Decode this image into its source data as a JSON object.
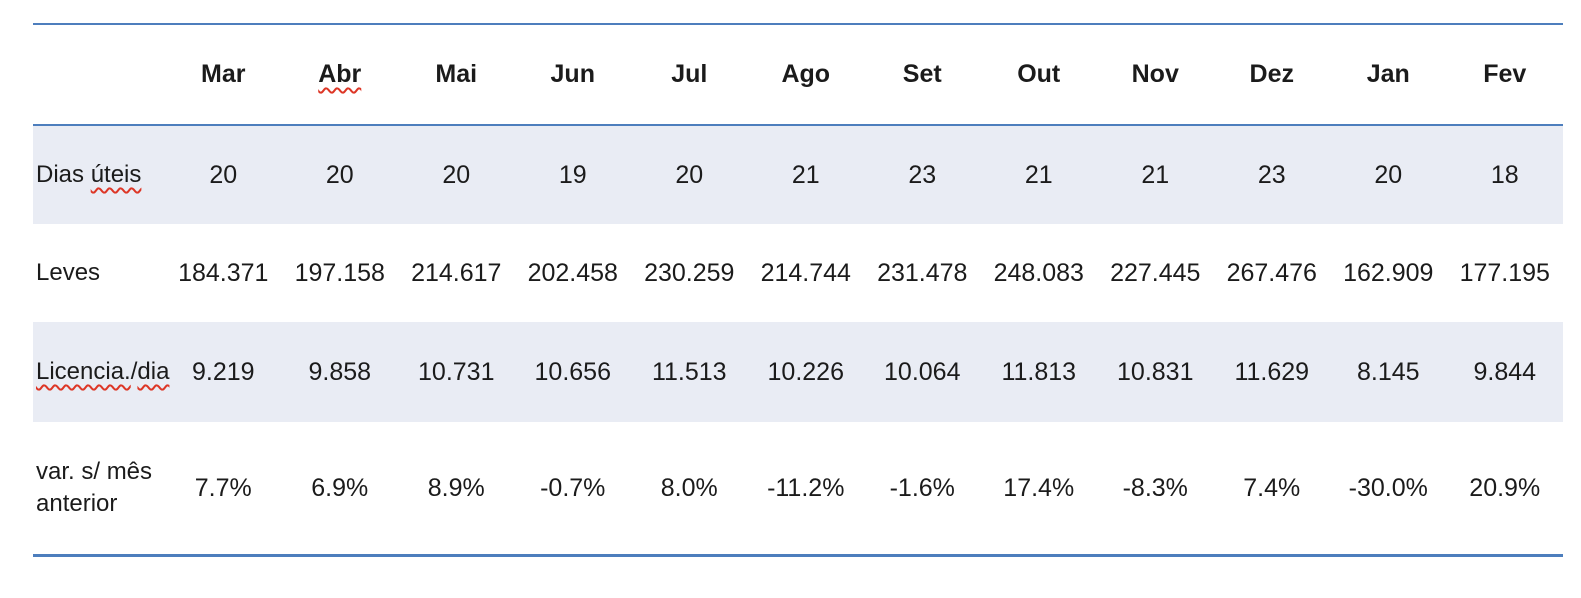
{
  "colors": {
    "rule_blue": "#4d7ebd",
    "row_shade": "#e9ecf4",
    "text": "#1b1b1b",
    "spellcheck_red": "#dd3626",
    "background": "#ffffff"
  },
  "table": {
    "columns": [
      "Mar",
      "Abr",
      "Mai",
      "Jun",
      "Jul",
      "Ago",
      "Set",
      "Out",
      "Nov",
      "Dez",
      "Jan",
      "Fev"
    ],
    "rows": [
      {
        "label_segments": [
          {
            "text": "Dias ",
            "misspelled": false
          },
          {
            "text": "úteis",
            "misspelled": true
          }
        ],
        "shaded": true,
        "values": [
          "20",
          "20",
          "20",
          "19",
          "20",
          "21",
          "23",
          "21",
          "21",
          "23",
          "20",
          "18"
        ]
      },
      {
        "label_segments": [
          {
            "text": "Leves",
            "misspelled": false
          }
        ],
        "shaded": false,
        "values": [
          "184.371",
          "197.158",
          "214.617",
          "202.458",
          "230.259",
          "214.744",
          "231.478",
          "248.083",
          "227.445",
          "267.476",
          "162.909",
          "177.195"
        ]
      },
      {
        "label_segments": [
          {
            "text": "Licencia.",
            "misspelled": true
          },
          {
            "text": "/",
            "misspelled": false
          },
          {
            "text": "dia",
            "misspelled": true
          }
        ],
        "shaded": true,
        "values": [
          "9.219",
          "9.858",
          "10.731",
          "10.656",
          "11.513",
          "10.226",
          "10.064",
          "11.813",
          "10.831",
          "11.629",
          "8.145",
          "9.844"
        ]
      },
      {
        "label_segments": [
          {
            "text": "var. s/ mês anterior",
            "misspelled": false
          }
        ],
        "shaded": false,
        "values": [
          "7.7%",
          "6.9%",
          "8.9%",
          "-0.7%",
          "8.0%",
          "-11.2%",
          "-1.6%",
          "17.4%",
          "-8.3%",
          "7.4%",
          "-30.0%",
          "20.9%"
        ]
      }
    ]
  }
}
